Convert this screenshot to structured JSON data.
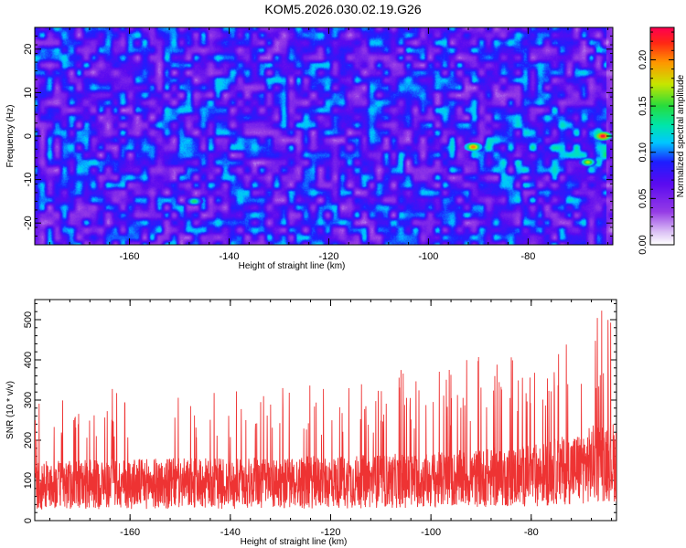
{
  "window": {
    "title": "KOM5.2026.030.02.19.G26"
  },
  "chart_data": [
    {
      "type": "heatmap",
      "title": "KOM5.2026.030.02.19.G26",
      "xlabel": "Height of straight line (km)",
      "ylabel": "Frequency (Hz)",
      "xlim": [
        -179,
        -63
      ],
      "ylim": [
        -25,
        25
      ],
      "xticks": [
        -160,
        -140,
        -120,
        -100,
        -80
      ],
      "yticks": [
        -20,
        -10,
        0,
        10,
        20
      ],
      "colorbar": {
        "label": "Normalized spectral amplitude",
        "range": [
          0.0,
          0.235
        ],
        "ticks": [
          0.0,
          0.05,
          0.1,
          0.15,
          0.2
        ],
        "tick_labels": [
          "0.00",
          "0.05",
          "0.10",
          "0.15",
          "0.20"
        ]
      },
      "peak": {
        "x": -65,
        "y": 0,
        "value": 0.23
      },
      "strong_features": [
        {
          "x": -91,
          "y": -2.5,
          "value": 0.2
        },
        {
          "x": -65,
          "y": 0,
          "value": 0.23
        },
        {
          "x": -68,
          "y": -6,
          "value": 0.17
        },
        {
          "x": -147,
          "y": -15,
          "value": 0.14
        }
      ]
    },
    {
      "type": "line",
      "xlabel": "Height of straight line (km)",
      "ylabel": "SNR (10 * v/v)",
      "xlim": [
        -179,
        -63
      ],
      "ylim": [
        0,
        550
      ],
      "xticks": [
        -160,
        -140,
        -120,
        -100,
        -80
      ],
      "yticks": [
        0,
        100,
        200,
        300,
        400,
        500
      ],
      "series": [
        {
          "name": "SNR",
          "color": "#ee3333",
          "envelope": [
            {
              "x": -179,
              "mean": 110,
              "peak": 300
            },
            {
              "x": -160,
              "mean": 115,
              "peak": 340
            },
            {
              "x": -140,
              "mean": 115,
              "peak": 330
            },
            {
              "x": -120,
              "mean": 120,
              "peak": 340
            },
            {
              "x": -100,
              "mean": 125,
              "peak": 395
            },
            {
              "x": -80,
              "mean": 140,
              "peak": 420
            },
            {
              "x": -70,
              "mean": 165,
              "peak": 480
            },
            {
              "x": -65,
              "mean": 190,
              "peak": 550
            },
            {
              "x": -63,
              "mean": 180,
              "peak": 430
            }
          ]
        }
      ]
    }
  ]
}
